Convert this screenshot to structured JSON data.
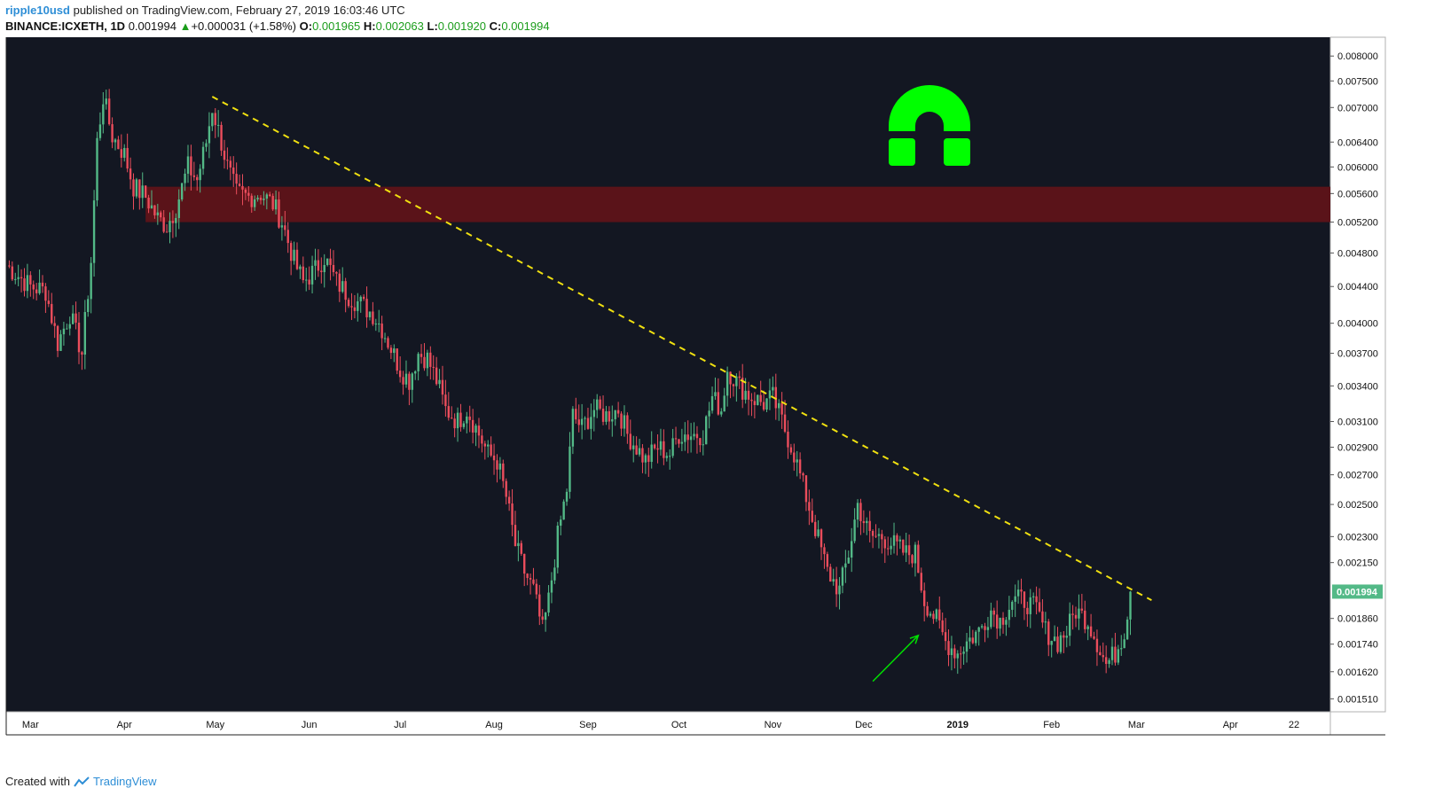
{
  "header": {
    "author": "ripple10usd",
    "published_text": "published on TradingView.com, February 27, 2019 16:03:46 UTC",
    "symbol": "BINANCE:ICXETH, 1D",
    "last": "0.001994",
    "change_arrow": "▲",
    "change": "+0.000031 (+1.58%)",
    "o_label": "O:",
    "o": "0.001965",
    "h_label": "H:",
    "h": "0.002063",
    "l_label": "L:",
    "l": "0.001920",
    "c_label": "C:",
    "c": "0.001994"
  },
  "footer": {
    "created_with": "Created with",
    "brand": "TradingView"
  },
  "colors": {
    "background": "#131722",
    "up": "#53b987",
    "down": "#eb4d5c",
    "trendline": "#f0e010",
    "resistance_zone": "#5a1319",
    "horseshoe": "#00ff00",
    "arrow": "#00e000",
    "price_tag": "#53b987"
  },
  "chart_data": {
    "type": "candlestick",
    "title": "",
    "y_axis": {
      "scale": "log",
      "ylim": [
        0.00146,
        0.0084
      ],
      "ticks": [
        "0.008000",
        "0.007500",
        "0.007000",
        "0.006400",
        "0.006000",
        "0.005600",
        "0.005200",
        "0.004800",
        "0.004400",
        "0.004000",
        "0.003700",
        "0.003400",
        "0.003100",
        "0.002900",
        "0.002700",
        "0.002500",
        "0.002300",
        "0.002150",
        "0.001860",
        "0.001740",
        "0.001620",
        "0.001510"
      ],
      "current_price_label": "0.001994"
    },
    "x_axis": {
      "labels": [
        {
          "date": "2018-03-01",
          "label": "Mar"
        },
        {
          "date": "2018-04-01",
          "label": "Apr"
        },
        {
          "date": "2018-05-01",
          "label": "May"
        },
        {
          "date": "2018-06-01",
          "label": "Jun"
        },
        {
          "date": "2018-07-01",
          "label": "Jul"
        },
        {
          "date": "2018-08-01",
          "label": "Aug"
        },
        {
          "date": "2018-09-01",
          "label": "Sep"
        },
        {
          "date": "2018-10-01",
          "label": "Oct"
        },
        {
          "date": "2018-11-01",
          "label": "Nov"
        },
        {
          "date": "2018-12-01",
          "label": "Dec"
        },
        {
          "date": "2019-01-01",
          "label": "2019"
        },
        {
          "date": "2019-02-01",
          "label": "Feb"
        },
        {
          "date": "2019-03-01",
          "label": "Mar"
        },
        {
          "date": "2019-04-01",
          "label": "Apr"
        },
        {
          "date": "2019-04-22",
          "label": "22"
        }
      ],
      "xlim": [
        "2018-02-21",
        "2019-05-04"
      ]
    },
    "close_series": [
      [
        "2018-02-21",
        0.00465
      ],
      [
        "2018-03-01",
        0.0044
      ],
      [
        "2018-03-06",
        0.00435
      ],
      [
        "2018-03-10",
        0.0038
      ],
      [
        "2018-03-14",
        0.0041
      ],
      [
        "2018-03-18",
        0.0037
      ],
      [
        "2018-03-21",
        0.0047
      ],
      [
        "2018-03-23",
        0.0064
      ],
      [
        "2018-03-25",
        0.0072
      ],
      [
        "2018-03-28",
        0.0065
      ],
      [
        "2018-04-01",
        0.0062
      ],
      [
        "2018-04-04",
        0.0057
      ],
      [
        "2018-04-08",
        0.00555
      ],
      [
        "2018-04-12",
        0.00525
      ],
      [
        "2018-04-15",
        0.00515
      ],
      [
        "2018-04-18",
        0.0054
      ],
      [
        "2018-04-22",
        0.006
      ],
      [
        "2018-04-25",
        0.0058
      ],
      [
        "2018-04-28",
        0.0064
      ],
      [
        "2018-04-30",
        0.007
      ],
      [
        "2018-05-03",
        0.0064
      ],
      [
        "2018-05-05",
        0.006
      ],
      [
        "2018-05-08",
        0.0056
      ],
      [
        "2018-05-12",
        0.00555
      ],
      [
        "2018-05-16",
        0.0056
      ],
      [
        "2018-05-20",
        0.00545
      ],
      [
        "2018-05-23",
        0.0052
      ],
      [
        "2018-05-27",
        0.0047
      ],
      [
        "2018-05-30",
        0.00445
      ],
      [
        "2018-06-03",
        0.0046
      ],
      [
        "2018-06-06",
        0.00475
      ],
      [
        "2018-06-10",
        0.00445
      ],
      [
        "2018-06-14",
        0.0043
      ],
      [
        "2018-06-18",
        0.0042
      ],
      [
        "2018-06-22",
        0.0041
      ],
      [
        "2018-06-25",
        0.00395
      ],
      [
        "2018-06-28",
        0.00375
      ],
      [
        "2018-07-01",
        0.00355
      ],
      [
        "2018-07-04",
        0.00345
      ],
      [
        "2018-07-07",
        0.0037
      ],
      [
        "2018-07-10",
        0.00365
      ],
      [
        "2018-07-13",
        0.00345
      ],
      [
        "2018-07-16",
        0.0032
      ],
      [
        "2018-07-20",
        0.0031
      ],
      [
        "2018-07-23",
        0.0032
      ],
      [
        "2018-07-27",
        0.003
      ],
      [
        "2018-07-30",
        0.00285
      ],
      [
        "2018-08-02",
        0.0028
      ],
      [
        "2018-08-05",
        0.00255
      ],
      [
        "2018-08-08",
        0.00225
      ],
      [
        "2018-08-11",
        0.0021
      ],
      [
        "2018-08-14",
        0.002
      ],
      [
        "2018-08-17",
        0.0018
      ],
      [
        "2018-08-19",
        0.00195
      ],
      [
        "2018-08-22",
        0.0023
      ],
      [
        "2018-08-25",
        0.0026
      ],
      [
        "2018-08-27",
        0.00315
      ],
      [
        "2018-08-30",
        0.00305
      ],
      [
        "2018-09-03",
        0.0032
      ],
      [
        "2018-09-07",
        0.00315
      ],
      [
        "2018-09-11",
        0.0032
      ],
      [
        "2018-09-14",
        0.003
      ],
      [
        "2018-09-17",
        0.0029
      ],
      [
        "2018-09-20",
        0.0028
      ],
      [
        "2018-09-24",
        0.0029
      ],
      [
        "2018-09-28",
        0.00285
      ],
      [
        "2018-10-01",
        0.003
      ],
      [
        "2018-10-05",
        0.003
      ],
      [
        "2018-10-09",
        0.003
      ],
      [
        "2018-10-12",
        0.0033
      ],
      [
        "2018-10-15",
        0.0032
      ],
      [
        "2018-10-17",
        0.00355
      ],
      [
        "2018-10-21",
        0.0034
      ],
      [
        "2018-10-25",
        0.0033
      ],
      [
        "2018-10-29",
        0.00325
      ],
      [
        "2018-11-01",
        0.0033
      ],
      [
        "2018-11-04",
        0.0031
      ],
      [
        "2018-11-08",
        0.00285
      ],
      [
        "2018-11-12",
        0.00255
      ],
      [
        "2018-11-15",
        0.00235
      ],
      [
        "2018-11-19",
        0.0021
      ],
      [
        "2018-11-23",
        0.002
      ],
      [
        "2018-11-26",
        0.0022
      ],
      [
        "2018-11-29",
        0.0025
      ],
      [
        "2018-12-03",
        0.0023
      ],
      [
        "2018-12-07",
        0.0023
      ],
      [
        "2018-12-11",
        0.00225
      ],
      [
        "2018-12-15",
        0.0022
      ],
      [
        "2018-12-18",
        0.0022
      ],
      [
        "2018-12-21",
        0.00195
      ],
      [
        "2018-12-25",
        0.00185
      ],
      [
        "2018-12-28",
        0.00175
      ],
      [
        "2019-01-01",
        0.0017
      ],
      [
        "2019-01-04",
        0.00175
      ],
      [
        "2019-01-08",
        0.0018
      ],
      [
        "2019-01-12",
        0.0019
      ],
      [
        "2019-01-15",
        0.00185
      ],
      [
        "2019-01-19",
        0.00195
      ],
      [
        "2019-01-23",
        0.00195
      ],
      [
        "2019-01-27",
        0.0019
      ],
      [
        "2019-01-30",
        0.0018
      ],
      [
        "2019-02-03",
        0.00175
      ],
      [
        "2019-02-06",
        0.0018
      ],
      [
        "2019-02-09",
        0.0019
      ],
      [
        "2019-02-13",
        0.00185
      ],
      [
        "2019-02-16",
        0.00175
      ],
      [
        "2019-02-19",
        0.00165
      ],
      [
        "2019-02-22",
        0.0017
      ],
      [
        "2019-02-25",
        0.0018
      ],
      [
        "2019-02-27",
        0.001994
      ]
    ],
    "annotations": {
      "trendline": {
        "start": [
          "2018-04-30",
          0.0072
        ],
        "end": [
          "2019-03-06",
          0.00195
        ],
        "style": "dashed"
      },
      "resistance_zone": {
        "from": 0.0052,
        "to": 0.0057,
        "start": "2018-04-08"
      },
      "arrow": {
        "from": [
          "2018-12-04",
          0.00158
        ],
        "to": [
          "2018-12-19",
          0.00178
        ]
      },
      "icon": "horseshoe-magnet-icon"
    }
  }
}
